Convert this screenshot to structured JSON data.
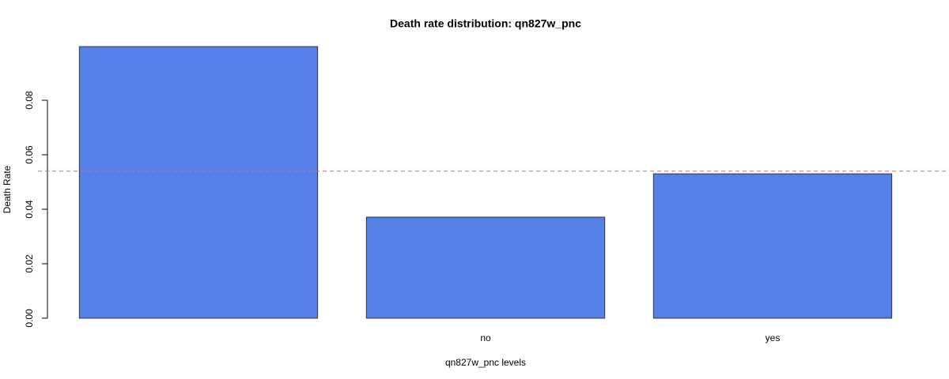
{
  "chart_data": {
    "type": "bar",
    "title": "Death rate distribution: qn827w_pnc",
    "x_label": "qn827w_pnc levels",
    "y_label": "Death Rate",
    "categories": [
      null,
      "no",
      "yes"
    ],
    "values": [
      0.0997,
      0.0371,
      0.053
    ],
    "color": "#5381e8",
    "ylim": [
      0,
      0.1
    ],
    "yticks": [
      {
        "value": 0,
        "label": "0.00"
      },
      {
        "value": 0.02,
        "label": "0.02"
      },
      {
        "value": 0.04,
        "label": "0.04"
      },
      {
        "value": 0.06,
        "label": "0.06"
      },
      {
        "value": 0.08,
        "label": "0.08"
      }
    ],
    "reference_line": {
      "value": 0.054,
      "color": "#f0607a"
    }
  }
}
